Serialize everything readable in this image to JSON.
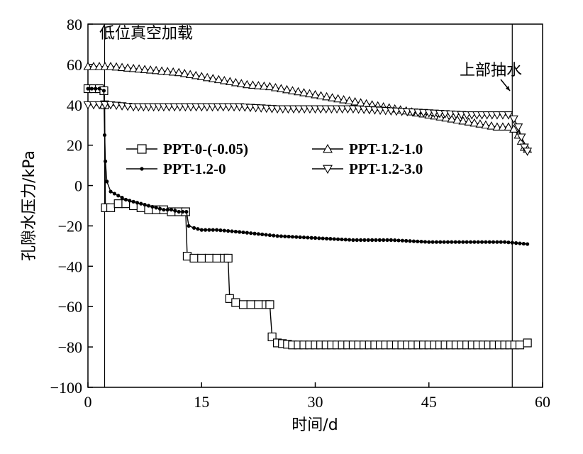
{
  "chart_data": {
    "type": "line",
    "title": "",
    "xlabel": "时间/d",
    "ylabel": "孔隙水压力/kPa",
    "xlim": [
      0,
      60
    ],
    "ylim": [
      -100,
      80
    ],
    "xticks": [
      0,
      15,
      30,
      45,
      60
    ],
    "yticks": [
      80,
      60,
      40,
      20,
      0,
      -20,
      -40,
      -60,
      -80,
      -100
    ],
    "grid": false,
    "legend_position": "center",
    "annotations": [
      {
        "text": "低位真空加载",
        "x": 2.2
      },
      {
        "text": "上部抽水",
        "x": 56
      }
    ],
    "vlines": [
      2.2,
      56
    ],
    "series": [
      {
        "name": "PPT-0-(-0.05)",
        "marker": "square",
        "points": [
          [
            0,
            48
          ],
          [
            1.5,
            48
          ],
          [
            2.1,
            47
          ],
          [
            2.2,
            40
          ],
          [
            2.3,
            -11
          ],
          [
            3,
            -11
          ],
          [
            4,
            -9
          ],
          [
            5,
            -9
          ],
          [
            6,
            -10
          ],
          [
            7,
            -11
          ],
          [
            8,
            -12
          ],
          [
            9,
            -12
          ],
          [
            10,
            -12
          ],
          [
            11,
            -13
          ],
          [
            12,
            -13
          ],
          [
            12.9,
            -13
          ],
          [
            13.1,
            -35
          ],
          [
            14,
            -36
          ],
          [
            15,
            -36
          ],
          [
            16,
            -36
          ],
          [
            17,
            -36
          ],
          [
            18,
            -36
          ],
          [
            18.5,
            -36
          ],
          [
            18.7,
            -56
          ],
          [
            19.5,
            -58
          ],
          [
            20.5,
            -59
          ],
          [
            21.5,
            -59
          ],
          [
            22.5,
            -59
          ],
          [
            23.5,
            -59
          ],
          [
            24,
            -59
          ],
          [
            24.3,
            -75
          ],
          [
            25,
            -78
          ],
          [
            27,
            -79
          ],
          [
            30,
            -79
          ],
          [
            35,
            -79
          ],
          [
            40,
            -79
          ],
          [
            45,
            -79
          ],
          [
            50,
            -79
          ],
          [
            55,
            -79
          ],
          [
            57,
            -79
          ],
          [
            58,
            -78
          ]
        ]
      },
      {
        "name": "PPT-1.2-0",
        "marker": "dot",
        "points": [
          [
            0,
            48
          ],
          [
            1.5,
            48
          ],
          [
            2.1,
            47
          ],
          [
            2.2,
            25
          ],
          [
            2.3,
            12
          ],
          [
            2.5,
            2
          ],
          [
            3,
            -3
          ],
          [
            4,
            -5
          ],
          [
            5,
            -7
          ],
          [
            6,
            -8
          ],
          [
            7,
            -9
          ],
          [
            8,
            -10
          ],
          [
            9,
            -11
          ],
          [
            10,
            -12
          ],
          [
            11,
            -12
          ],
          [
            12,
            -13
          ],
          [
            13,
            -13
          ],
          [
            13.3,
            -20
          ],
          [
            14,
            -21
          ],
          [
            15,
            -22
          ],
          [
            17,
            -22
          ],
          [
            20,
            -23
          ],
          [
            25,
            -25
          ],
          [
            30,
            -26
          ],
          [
            35,
            -27
          ],
          [
            40,
            -27
          ],
          [
            45,
            -28
          ],
          [
            50,
            -28
          ],
          [
            55,
            -28
          ],
          [
            58,
            -29
          ]
        ]
      },
      {
        "name": "PPT-1.2-1.0",
        "marker": "triangle-up",
        "points": [
          [
            0,
            59
          ],
          [
            3,
            59
          ],
          [
            6,
            58
          ],
          [
            9,
            57
          ],
          [
            12,
            56
          ],
          [
            15,
            54
          ],
          [
            18,
            52
          ],
          [
            21,
            50
          ],
          [
            24,
            49
          ],
          [
            27,
            47
          ],
          [
            30,
            45
          ],
          [
            33,
            43
          ],
          [
            36,
            41
          ],
          [
            39,
            39
          ],
          [
            42,
            37
          ],
          [
            45,
            35
          ],
          [
            48,
            33
          ],
          [
            51,
            31
          ],
          [
            54,
            29
          ],
          [
            55.5,
            29
          ],
          [
            56.2,
            28
          ],
          [
            56.8,
            25
          ],
          [
            57.2,
            22
          ],
          [
            57.6,
            19
          ],
          [
            58,
            18
          ]
        ]
      },
      {
        "name": "PPT-1.2-3.0",
        "marker": "triangle-down",
        "points": [
          [
            0,
            40
          ],
          [
            3,
            40
          ],
          [
            6,
            39
          ],
          [
            10,
            39
          ],
          [
            15,
            39
          ],
          [
            20,
            39
          ],
          [
            25,
            38
          ],
          [
            30,
            38
          ],
          [
            35,
            38
          ],
          [
            40,
            37
          ],
          [
            45,
            36
          ],
          [
            50,
            35
          ],
          [
            54,
            35
          ],
          [
            55.5,
            35
          ],
          [
            56.2,
            33
          ],
          [
            56.8,
            29
          ],
          [
            57.2,
            24
          ],
          [
            57.6,
            19
          ],
          [
            58,
            17
          ]
        ]
      }
    ]
  }
}
